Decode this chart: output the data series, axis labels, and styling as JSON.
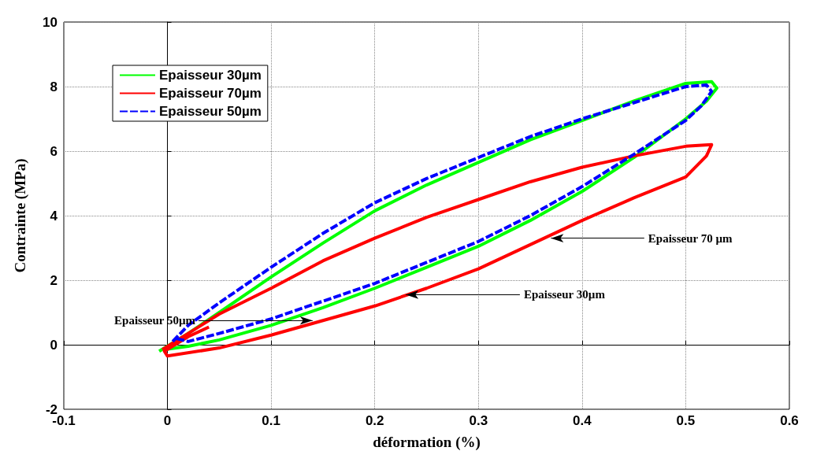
{
  "chart_data": {
    "type": "line",
    "xlabel": "déformation (%)",
    "ylabel": "Contrainte (MPa)",
    "xlim": [
      -0.1,
      0.6
    ],
    "xticks": [
      -0.1,
      0,
      0.1,
      0.2,
      0.3,
      0.4,
      0.5,
      0.6
    ],
    "ylim": [
      -2,
      10
    ],
    "yticks": [
      -2,
      0,
      2,
      4,
      6,
      8,
      10
    ],
    "grid": true,
    "legend": "top left",
    "marker": "none",
    "series": [
      {
        "name": "Epaisseur 30µm",
        "color": "#00ff00",
        "line_style": "solid",
        "x": [
          -0.008,
          0.02,
          0.05,
          0.1,
          0.15,
          0.2,
          0.25,
          0.3,
          0.35,
          0.4,
          0.45,
          0.5,
          0.525,
          0.53,
          0.52,
          0.5,
          0.45,
          0.4,
          0.35,
          0.3,
          0.25,
          0.2,
          0.15,
          0.1,
          0.05,
          0.02,
          -0.004
        ],
        "values": [
          -0.2,
          0.35,
          1.0,
          2.1,
          3.15,
          4.15,
          4.95,
          5.65,
          6.35,
          6.95,
          7.55,
          8.1,
          8.15,
          7.95,
          7.55,
          7.0,
          5.8,
          4.75,
          3.85,
          3.05,
          2.4,
          1.75,
          1.15,
          0.6,
          0.15,
          -0.05,
          -0.15
        ]
      },
      {
        "name": "Epaisseur 70µm",
        "color": "#ff0000",
        "line_style": "solid",
        "x": [
          -0.005,
          0.02,
          0.05,
          0.1,
          0.15,
          0.2,
          0.25,
          0.3,
          0.35,
          0.4,
          0.45,
          0.5,
          0.525,
          0.52,
          0.5,
          0.45,
          0.4,
          0.35,
          0.3,
          0.25,
          0.2,
          0.15,
          0.1,
          0.05,
          0.0,
          -0.003,
          0.02,
          0.04
        ],
        "values": [
          -0.15,
          0.35,
          0.95,
          1.75,
          2.6,
          3.3,
          3.95,
          4.5,
          5.05,
          5.5,
          5.85,
          6.15,
          6.2,
          5.85,
          5.2,
          4.55,
          3.85,
          3.1,
          2.35,
          1.75,
          1.2,
          0.75,
          0.3,
          -0.1,
          -0.35,
          -0.2,
          0.25,
          0.55
        ]
      },
      {
        "name": "Epaisseur 50µm",
        "color": "#0000ff",
        "line_style": "dashed",
        "x": [
          0.005,
          0.02,
          0.05,
          0.1,
          0.15,
          0.2,
          0.25,
          0.3,
          0.35,
          0.4,
          0.45,
          0.5,
          0.52,
          0.525,
          0.515,
          0.5,
          0.45,
          0.4,
          0.35,
          0.3,
          0.25,
          0.2,
          0.15,
          0.1,
          0.05,
          0.02,
          0.008
        ],
        "values": [
          0.1,
          0.6,
          1.3,
          2.4,
          3.45,
          4.4,
          5.15,
          5.8,
          6.45,
          7.0,
          7.5,
          8.0,
          8.05,
          7.85,
          7.4,
          6.95,
          5.9,
          4.9,
          4.0,
          3.2,
          2.55,
          1.9,
          1.35,
          0.8,
          0.35,
          0.1,
          0.2
        ]
      }
    ],
    "annotations": [
      {
        "text": "Epaisseur 70 µm",
        "x": 0.37,
        "y": 3.3
      },
      {
        "text": "Epaisseur 30µm",
        "x": 0.23,
        "y": 1.55
      },
      {
        "text": "Epaisseur 50µm",
        "x": 0.14,
        "y": 0.75
      }
    ]
  }
}
